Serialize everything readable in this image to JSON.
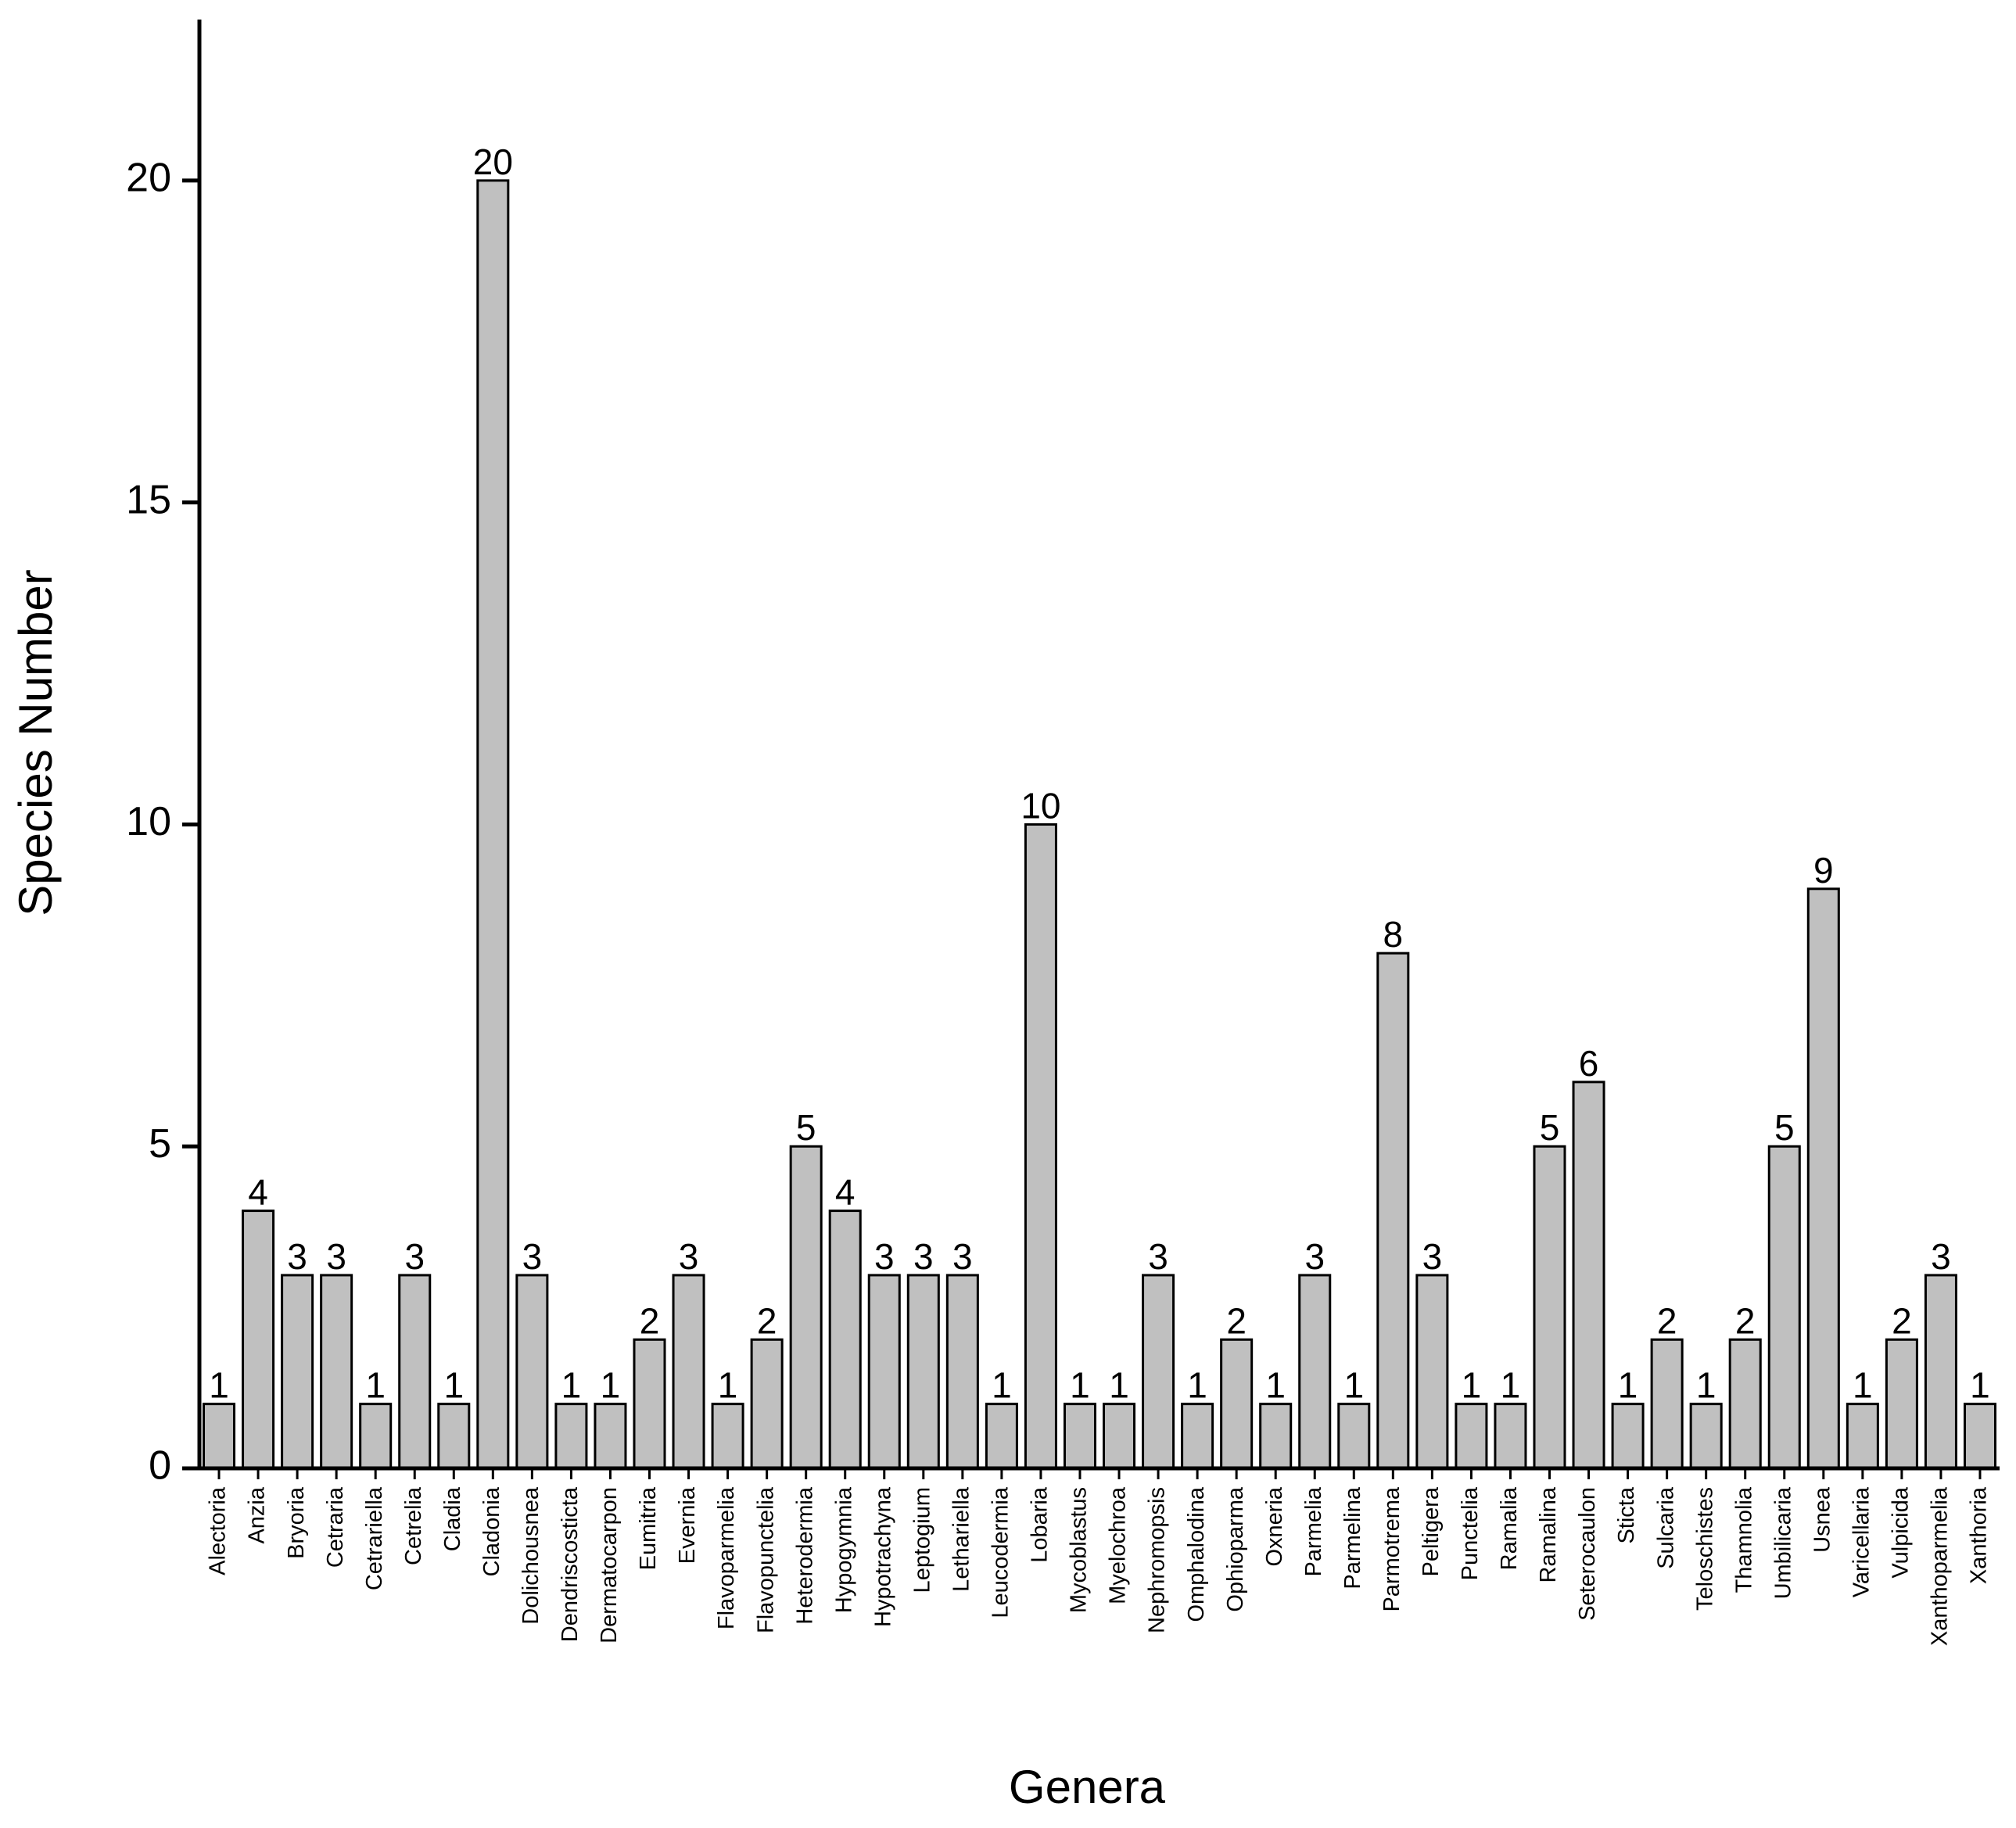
{
  "chart_data": {
    "type": "bar",
    "x_label": "Genera",
    "y_label": "Species Number",
    "categories": [
      "Alectoria",
      "Anzia",
      "Bryoria",
      "Cetraria",
      "Cetrariella",
      "Cetrelia",
      "Cladia",
      "Cladonia",
      "Dolichousnea",
      "Dendriscosticta",
      "Dermatocarpon",
      "Eumitria",
      "Evernia",
      "Flavoparmelia",
      "Flavopunctelia",
      "Heterodermia",
      "Hypogymnia",
      "Hypotrachyna",
      "Leptogium",
      "Lethariella",
      "Leucodermia",
      "Lobaria",
      "Mycoblastus",
      "Myelochroa",
      "Nephromopsis",
      "Omphalodina",
      "Ophioparma",
      "Oxneria",
      "Parmelia",
      "Parmelina",
      "Parmotrema",
      "Peltigera",
      "Punctelia",
      "Ramalia",
      "Ramalina",
      "Seterocaulon",
      "Sticta",
      "Sulcaria",
      "Teloschistes",
      "Thamnolia",
      "Umbilicaria",
      "Usnea",
      "Varicellaria",
      "Vulpicida",
      "Xanthoparmelia",
      "Xanthoria"
    ],
    "values": [
      1,
      4,
      3,
      3,
      1,
      3,
      1,
      20,
      3,
      1,
      1,
      2,
      3,
      1,
      2,
      5,
      4,
      3,
      3,
      3,
      1,
      10,
      1,
      1,
      3,
      1,
      2,
      1,
      3,
      1,
      8,
      3,
      1,
      1,
      5,
      6,
      1,
      2,
      1,
      2,
      5,
      9,
      1,
      2,
      3,
      1
    ],
    "color": "#c0c0c0",
    "ylim": [
      0,
      22.5
    ],
    "yticks": [
      0,
      5,
      10,
      15,
      20
    ],
    "grid": false
  }
}
